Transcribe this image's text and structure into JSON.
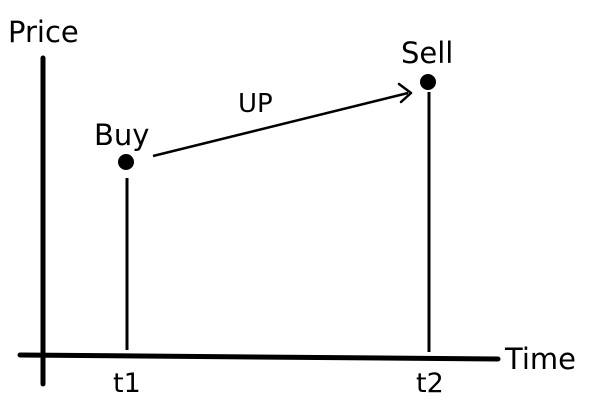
{
  "axes": {
    "y_label": "Price",
    "x_label": "Time"
  },
  "points": {
    "buy": {
      "label": "Buy",
      "time_tick": "t1"
    },
    "sell": {
      "label": "Sell",
      "time_tick": "t2"
    }
  },
  "arrow": {
    "label": "UP"
  },
  "colors": {
    "ink": "#000000",
    "background": "#ffffff"
  }
}
